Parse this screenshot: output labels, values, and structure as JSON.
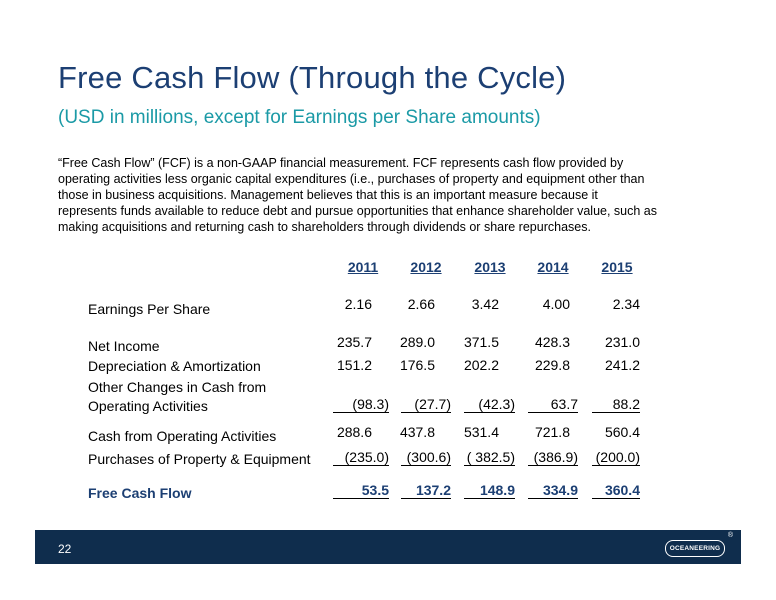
{
  "slide": {
    "title": "Free Cash Flow (Through the Cycle)",
    "subtitle": "(USD in millions, except for Earnings per Share amounts)",
    "description": "“Free Cash Flow” (FCF) is a non-GAAP financial measurement.  FCF represents cash flow  provided by operating activities less organic capital expenditures (i.e., purchases of property and equipment other than those in business acquisitions.  Management believes that this is an important measure because it represents funds available to reduce debt and pursue opportunities that enhance shareholder value, such as making acquisitions and returning cash to shareholders through dividends or share repurchases."
  },
  "table": {
    "years": [
      "2011",
      "2012",
      "2013",
      "2014",
      "2015"
    ],
    "rows": [
      {
        "label": "Earnings Per Share",
        "values": [
          "2.16",
          "2.66",
          "3.42",
          "4.00",
          "2.34"
        ]
      },
      {
        "label": "Net Income",
        "values": [
          "235.7",
          "289.0",
          "371.5",
          "428.3",
          "231.0"
        ]
      },
      {
        "label": "Depreciation & Amortization",
        "values": [
          "151.2",
          "176.5",
          "202.2",
          "229.8",
          "241.2"
        ]
      },
      {
        "label_line1": "Other Changes in Cash from",
        "label_line2": "Operating Activities",
        "values": [
          "(98.3)",
          "(27.7)",
          "(42.3)",
          "63.7",
          "88.2"
        ]
      },
      {
        "label": "Cash from Operating Activities",
        "values": [
          "288.6",
          "437.8",
          "531.4",
          "721.8",
          "560.4"
        ]
      },
      {
        "label": "Purchases of Property & Equipment",
        "values": [
          "(235.0)",
          "(300.6)",
          "( 382.5)",
          "(386.9)",
          "(200.0)"
        ]
      },
      {
        "label": "Free Cash Flow",
        "values": [
          "53.5",
          "137.2",
          "148.9",
          "334.9",
          "360.4"
        ]
      }
    ]
  },
  "footer": {
    "page_number": "22",
    "logo_text": "OCEANEERING",
    "registered_mark": "®",
    "background_color": "#0f2d4d"
  },
  "colors": {
    "title": "#1c3f73",
    "subtitle": "#1b9aa6"
  }
}
